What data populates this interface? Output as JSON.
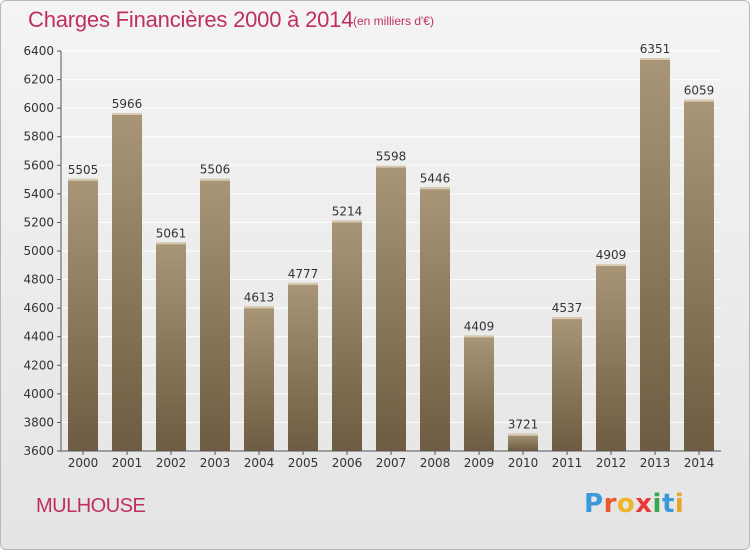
{
  "title": "Charges Financières 2000 à 2014",
  "subtitle": "(en milliers d'€)",
  "city": "MULHOUSE",
  "logo": {
    "letters": [
      "P",
      "r",
      "o",
      "x",
      "i",
      "t",
      "i"
    ],
    "colors": [
      "#3a9ad9",
      "#e85a2a",
      "#f0b429",
      "#e83a3a",
      "#3aa84a",
      "#3a9ad9",
      "#e8a52a"
    ]
  },
  "colors": {
    "accent": "#c0305c",
    "bar_top": "#a89677",
    "bar_bottom": "#6e5c42",
    "grid": "#ffffff",
    "axis": "#555555"
  },
  "chart_data": {
    "type": "bar",
    "title": "Charges Financières 2000 à 2014",
    "subtitle": "(en milliers d'€)",
    "categories": [
      "2000",
      "2001",
      "2002",
      "2003",
      "2004",
      "2005",
      "2006",
      "2007",
      "2008",
      "2009",
      "2010",
      "2011",
      "2012",
      "2013",
      "2014"
    ],
    "values": [
      5505,
      5966,
      5061,
      5506,
      4613,
      4777,
      5214,
      5598,
      5446,
      4409,
      3721,
      4537,
      4909,
      6351,
      6059
    ],
    "value_labels": [
      "5505",
      "5966",
      "5061",
      "5506",
      "4613",
      "4777",
      "5214",
      "5598",
      "5446",
      "4409",
      "3721",
      "4537",
      "4909",
      "6351",
      "6059"
    ],
    "ylim": [
      3600,
      6400
    ],
    "yticks": [
      "3600",
      "3800",
      "4000",
      "4200",
      "4400",
      "4600",
      "4800",
      "5000",
      "5200",
      "5400",
      "5600",
      "5800",
      "6000",
      "6200",
      "6400"
    ],
    "grid": true,
    "xlabel": "",
    "ylabel": ""
  }
}
